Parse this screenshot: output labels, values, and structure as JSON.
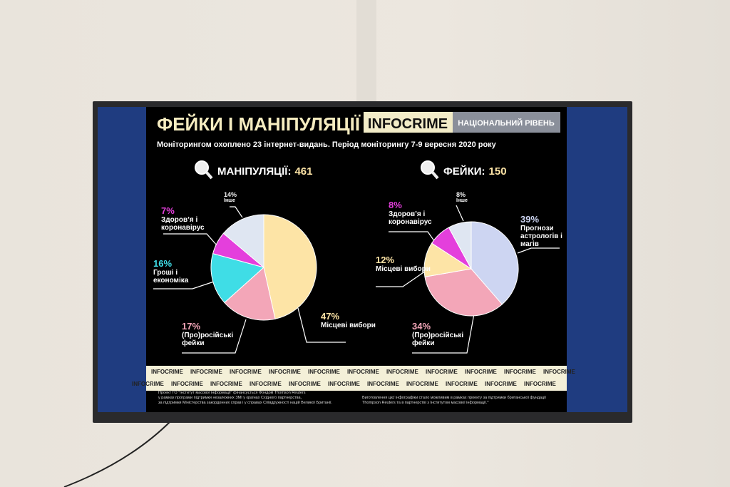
{
  "header": {
    "title": "ФЕЙКИ І МАНІПУЛЯЦІЇ",
    "brand": "INFOCRIME",
    "level": "НАЦІОНАЛЬНИЙ РІВЕНЬ",
    "subtitle": "Моніторингом охоплено 23 інтернет-видань. Період моніторингу 7-9 вересня 2020 року"
  },
  "chart_data": [
    {
      "type": "pie",
      "title": "МАНІПУЛЯЦІЇ:",
      "total": 461,
      "categories": [
        "Місцеві вибори",
        "(Про)російські фейки",
        "Гроші і економіка",
        "Здоров’я і коронавірус",
        "Інше"
      ],
      "values": [
        47,
        17,
        16,
        7,
        14
      ],
      "value_labels": [
        "47%",
        "17%",
        "16%",
        "7%",
        "14%"
      ],
      "colors": [
        "#fde4a6",
        "#f3a6b8",
        "#3fdde6",
        "#e43fdc",
        "#dfe6f2"
      ]
    },
    {
      "type": "pie",
      "title": "ФЕЙКИ:",
      "total": 150,
      "categories": [
        "Прогнози астрологів і магів",
        "(Про)російські фейки",
        "Місцеві вибори",
        "Здоров’я і коронавірус",
        "Інше"
      ],
      "values": [
        39,
        34,
        12,
        8,
        8
      ],
      "value_labels": [
        "39%",
        "34%",
        "12%",
        "8%",
        "8%"
      ],
      "colors": [
        "#cdd5f2",
        "#f3a6b8",
        "#fde4a6",
        "#e43fdc",
        "#dfe6f2"
      ]
    }
  ],
  "ribbon": "INFOCRIME",
  "footer": {
    "left": [
      "Проект ГО \"Інститут масової інформації\" фінансується Фондом Thomson Reuters",
      "у рамках програми підтримки незалежних ЗМІ у країнах Східного партнерства,",
      "за підтримки Міністерства закордонних справ і у справах Співдружності націй Великої Британії."
    ],
    "right": [
      "Виготовлення цієї інфографіки стало можливим в рамках проекту за підтримки британської фундації",
      "Thompson Reuters та в партнерстві з Інститутом масової інформації.*"
    ]
  }
}
